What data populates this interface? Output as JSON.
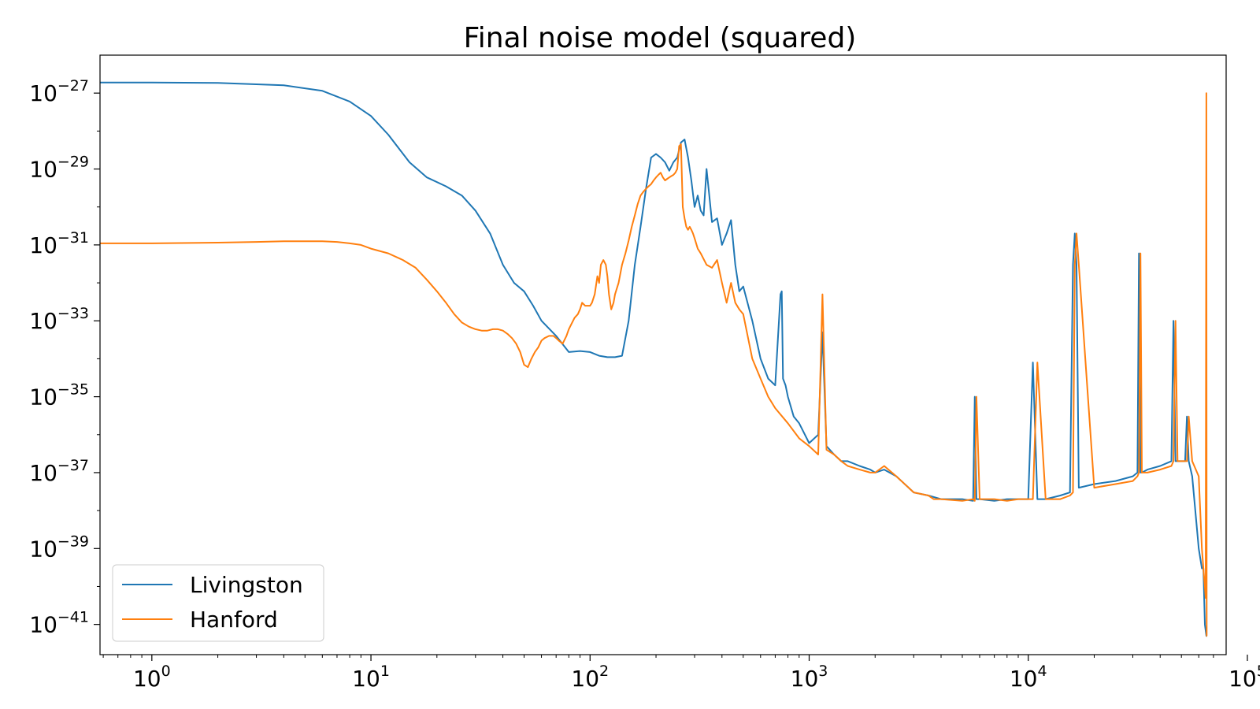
{
  "chart_data": {
    "type": "line",
    "title": "Final noise model (squared)",
    "xlabel": "",
    "ylabel": "",
    "xscale": "log",
    "yscale": "log",
    "xlim": [
      0.58,
      80000
    ],
    "ylim": [
      1.6e-42,
      1e-26
    ],
    "grid": false,
    "legend_position": "lower-left",
    "x_ticks": [
      {
        "value": 1,
        "base": "10",
        "exp": "0"
      },
      {
        "value": 10,
        "base": "10",
        "exp": "1"
      },
      {
        "value": 100,
        "base": "10",
        "exp": "2"
      },
      {
        "value": 1000,
        "base": "10",
        "exp": "3"
      },
      {
        "value": 10000,
        "base": "10",
        "exp": "4"
      },
      {
        "value": 100000,
        "base": "10",
        "exp": "5"
      }
    ],
    "y_ticks": [
      {
        "value": 1e-27,
        "base": "10",
        "exp": "−27"
      },
      {
        "value": 1e-29,
        "base": "10",
        "exp": "−29"
      },
      {
        "value": 1e-31,
        "base": "10",
        "exp": "−31"
      },
      {
        "value": 1e-33,
        "base": "10",
        "exp": "−33"
      },
      {
        "value": 1e-35,
        "base": "10",
        "exp": "−35"
      },
      {
        "value": 1e-37,
        "base": "10",
        "exp": "−37"
      },
      {
        "value": 1e-39,
        "base": "10",
        "exp": "−39"
      },
      {
        "value": 1e-41,
        "base": "10",
        "exp": "−41"
      }
    ],
    "series": [
      {
        "name": "Livingston",
        "color": "#1f77b4",
        "x": [
          0.58,
          1,
          2,
          4,
          6,
          8,
          10,
          12,
          15,
          18,
          22,
          26,
          30,
          35,
          40,
          45,
          50,
          55,
          60,
          70,
          80,
          90,
          100,
          110,
          120,
          130,
          140,
          150,
          160,
          170,
          180,
          190,
          200,
          210,
          220,
          230,
          240,
          250,
          260,
          270,
          280,
          290,
          300,
          310,
          320,
          330,
          340,
          350,
          360,
          380,
          400,
          420,
          440,
          460,
          480,
          500,
          550,
          600,
          650,
          700,
          740,
          750,
          760,
          780,
          800,
          850,
          900,
          1000,
          1100,
          1150,
          1200,
          1300,
          1400,
          1500,
          1700,
          1900,
          2000,
          2200,
          2500,
          3000,
          3500,
          4000,
          5000,
          5600,
          5700,
          5800,
          6000,
          7000,
          8000,
          9000,
          10000,
          10500,
          11000,
          12000,
          14000,
          15500,
          16000,
          16300,
          16600,
          17000,
          20000,
          25000,
          30000,
          31500,
          32000,
          32500,
          33000,
          35000,
          40000,
          45000,
          46000,
          47000,
          48000,
          50000,
          52000,
          53000,
          54000,
          56000,
          60000,
          62000,
          63000,
          64000,
          65000,
          65500
        ],
        "y": [
          1.9e-27,
          1.9e-27,
          1.85e-27,
          1.6e-27,
          1.15e-27,
          6e-28,
          2.5e-28,
          8e-29,
          1.5e-29,
          6e-30,
          3.5e-30,
          2e-30,
          8e-31,
          2e-31,
          3e-32,
          1e-32,
          6e-33,
          2.5e-33,
          1e-33,
          4e-34,
          1.5e-34,
          1.6e-34,
          1.5e-34,
          1.2e-34,
          1.1e-34,
          1.1e-34,
          1.2e-34,
          1e-33,
          3e-32,
          3e-31,
          3e-30,
          2e-29,
          2.5e-29,
          2e-29,
          1.5e-29,
          9e-30,
          1.5e-29,
          2e-29,
          5e-29,
          6e-29,
          2e-29,
          5e-30,
          1e-30,
          2e-30,
          8e-31,
          6e-31,
          1e-29,
          2e-30,
          4e-31,
          5e-31,
          1e-31,
          2e-31,
          4.5e-31,
          3e-32,
          6e-33,
          8e-33,
          1e-33,
          1e-34,
          3e-35,
          2e-35,
          5e-33,
          6e-33,
          3e-35,
          2e-35,
          1e-35,
          3e-36,
          2e-36,
          6e-37,
          1e-36,
          5e-34,
          5e-37,
          3e-37,
          2e-37,
          2e-37,
          1.5e-37,
          1.2e-37,
          1e-37,
          1.2e-37,
          8e-38,
          3e-38,
          2.5e-38,
          2e-38,
          2e-38,
          1.8e-38,
          1e-35,
          2e-38,
          2e-38,
          1.8e-38,
          2e-38,
          2e-38,
          2e-38,
          8e-35,
          2e-38,
          2e-38,
          2.5e-38,
          3e-38,
          3e-32,
          2e-31,
          3e-32,
          4e-38,
          5e-38,
          6e-38,
          8e-38,
          1e-37,
          6e-32,
          1e-37,
          1e-37,
          1.2e-37,
          1.5e-37,
          2e-37,
          1e-33,
          2e-37,
          2e-37,
          2e-37,
          2e-37,
          3e-36,
          2e-37,
          8e-38,
          1e-39,
          3e-40,
          3e-40,
          1e-41,
          5e-42,
          5e-42
        ]
      },
      {
        "name": "Hanford",
        "color": "#ff7f0e",
        "x": [
          0.58,
          1,
          2,
          3,
          4,
          5,
          6,
          7,
          8,
          9,
          10,
          12,
          14,
          16,
          18,
          20,
          22,
          24,
          26,
          28,
          30,
          32,
          34,
          36,
          38,
          40,
          42,
          44,
          46,
          48,
          50,
          52,
          54,
          56,
          58,
          60,
          62,
          65,
          68,
          70,
          72,
          75,
          78,
          80,
          82,
          85,
          88,
          90,
          92,
          95,
          98,
          100,
          102,
          105,
          108,
          110,
          112,
          115,
          118,
          120,
          122,
          125,
          128,
          130,
          135,
          140,
          145,
          150,
          155,
          160,
          165,
          170,
          175,
          180,
          185,
          190,
          195,
          200,
          205,
          210,
          215,
          220,
          225,
          230,
          235,
          240,
          245,
          250,
          255,
          260,
          265,
          270,
          275,
          280,
          285,
          290,
          295,
          300,
          310,
          320,
          340,
          360,
          380,
          400,
          420,
          440,
          460,
          480,
          500,
          550,
          600,
          650,
          700,
          800,
          900,
          1000,
          1100,
          1150,
          1200,
          1300,
          1400,
          1500,
          1700,
          1900,
          2000,
          2200,
          2500,
          3000,
          3500,
          3700,
          3800,
          4000,
          5000,
          5600,
          5700,
          5800,
          6000,
          7000,
          8000,
          9000,
          10000,
          10500,
          11000,
          12000,
          14000,
          15500,
          16000,
          16300,
          16600,
          17000,
          20000,
          25000,
          30000,
          31500,
          32000,
          32500,
          33000,
          35000,
          40000,
          45000,
          46000,
          47000,
          48000,
          50000,
          52000,
          53000,
          54000,
          56000,
          60000,
          62000,
          63000,
          64000,
          64500,
          65000,
          65200,
          65500
        ],
        "y": [
          1.1e-31,
          1.1e-31,
          1.15e-31,
          1.2e-31,
          1.25e-31,
          1.25e-31,
          1.25e-31,
          1.2e-31,
          1.1e-31,
          1e-31,
          8e-32,
          6e-32,
          4e-32,
          2.5e-32,
          1.2e-32,
          6e-33,
          3e-33,
          1.5e-33,
          9e-34,
          7e-34,
          6e-34,
          5.5e-34,
          5.5e-34,
          6e-34,
          6e-34,
          5.5e-34,
          4.5e-34,
          3.5e-34,
          2.5e-34,
          1.5e-34,
          7e-35,
          6e-35,
          1e-34,
          1.5e-34,
          2e-34,
          3e-34,
          3.5e-34,
          4e-34,
          4e-34,
          3.5e-34,
          3e-34,
          2.5e-34,
          4e-34,
          6e-34,
          8e-34,
          1.2e-33,
          1.5e-33,
          2e-33,
          3e-33,
          2.5e-33,
          2.5e-33,
          2.5e-33,
          3e-33,
          5e-33,
          1.5e-32,
          1e-32,
          3e-32,
          4e-32,
          3e-32,
          1.5e-32,
          5e-33,
          2e-33,
          3e-33,
          5e-33,
          1e-32,
          3e-32,
          6e-32,
          1.3e-31,
          3e-31,
          6e-31,
          1.2e-30,
          2e-30,
          2.5e-30,
          3e-30,
          3.5e-30,
          4e-30,
          5e-30,
          6e-30,
          7e-30,
          8e-30,
          6e-30,
          5e-30,
          5.5e-30,
          6e-30,
          6.5e-30,
          7e-30,
          8e-30,
          1e-29,
          4e-29,
          4.5e-29,
          1e-30,
          5e-31,
          3e-31,
          2.5e-31,
          3e-31,
          2.5e-31,
          2e-31,
          1.5e-31,
          8e-32,
          6e-32,
          3e-32,
          2.5e-32,
          4e-32,
          1e-32,
          3e-33,
          1e-32,
          3e-33,
          2e-33,
          1.5e-33,
          1e-34,
          3e-35,
          1e-35,
          5e-36,
          2e-36,
          8e-37,
          5e-37,
          3e-37,
          5e-33,
          4e-37,
          3e-37,
          2e-37,
          1.5e-37,
          1.2e-37,
          1e-37,
          1e-37,
          1.5e-37,
          8e-38,
          3e-38,
          2.5e-38,
          2e-38,
          2e-38,
          2e-38,
          1.8e-38,
          2e-38,
          1.8e-38,
          1e-35,
          2e-38,
          2e-38,
          1.8e-38,
          2e-38,
          2e-38,
          2e-38,
          8e-35,
          2e-38,
          2e-38,
          2.5e-38,
          3e-38,
          3e-32,
          2e-31,
          3e-32,
          4e-38,
          5e-38,
          6e-38,
          8e-38,
          1e-37,
          6e-32,
          1e-37,
          1e-37,
          1.2e-37,
          1.5e-37,
          2e-37,
          1e-33,
          2e-37,
          2e-37,
          2e-37,
          2e-37,
          3e-36,
          2e-37,
          8e-38,
          1e-39,
          3e-40,
          1e-40,
          5e-41,
          1e-27,
          5e-42,
          5e-42
        ]
      }
    ]
  }
}
